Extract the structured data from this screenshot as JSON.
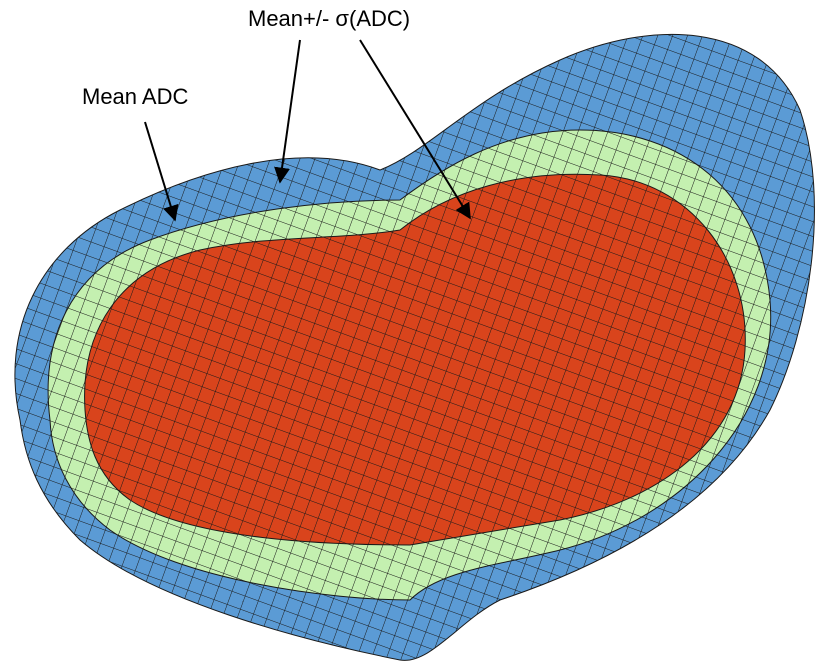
{
  "annotations": {
    "spread_label": "Mean+/- σ(ADC)",
    "mean_label": "Mean ADC"
  }
}
